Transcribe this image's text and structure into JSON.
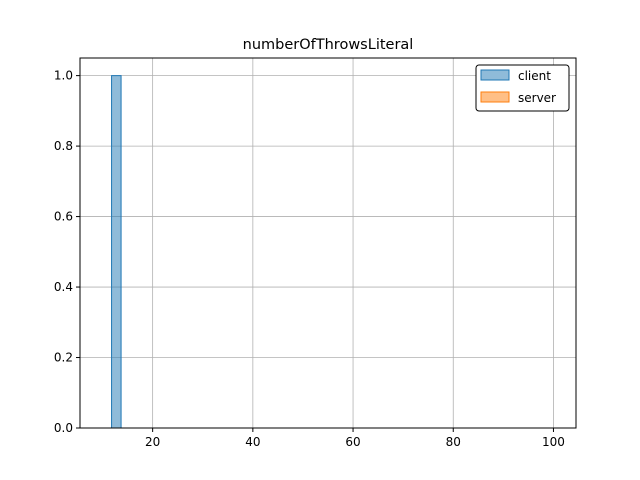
{
  "chart_data": {
    "type": "bar",
    "title": "numberOfThrowsLiteral",
    "xlabel": "",
    "ylabel": "",
    "xlim": [
      5.5,
      104.5
    ],
    "ylim": [
      0,
      1.05
    ],
    "xticks": [
      20,
      40,
      60,
      80,
      100
    ],
    "yticks": [
      0.0,
      0.2,
      0.4,
      0.6,
      0.8,
      1.0
    ],
    "xtick_labels": [
      "20",
      "40",
      "60",
      "80",
      "100"
    ],
    "ytick_labels": [
      "0.0",
      "0.2",
      "0.4",
      "0.6",
      "0.8",
      "1.0"
    ],
    "grid": true,
    "legend_position": "top-right",
    "series": [
      {
        "name": "client",
        "color": "#1f77b4",
        "bins": [
          {
            "x0": 11.8,
            "x1": 13.7,
            "value": 1.0
          }
        ]
      },
      {
        "name": "server",
        "color": "#ff7f0e",
        "bins": []
      }
    ]
  }
}
